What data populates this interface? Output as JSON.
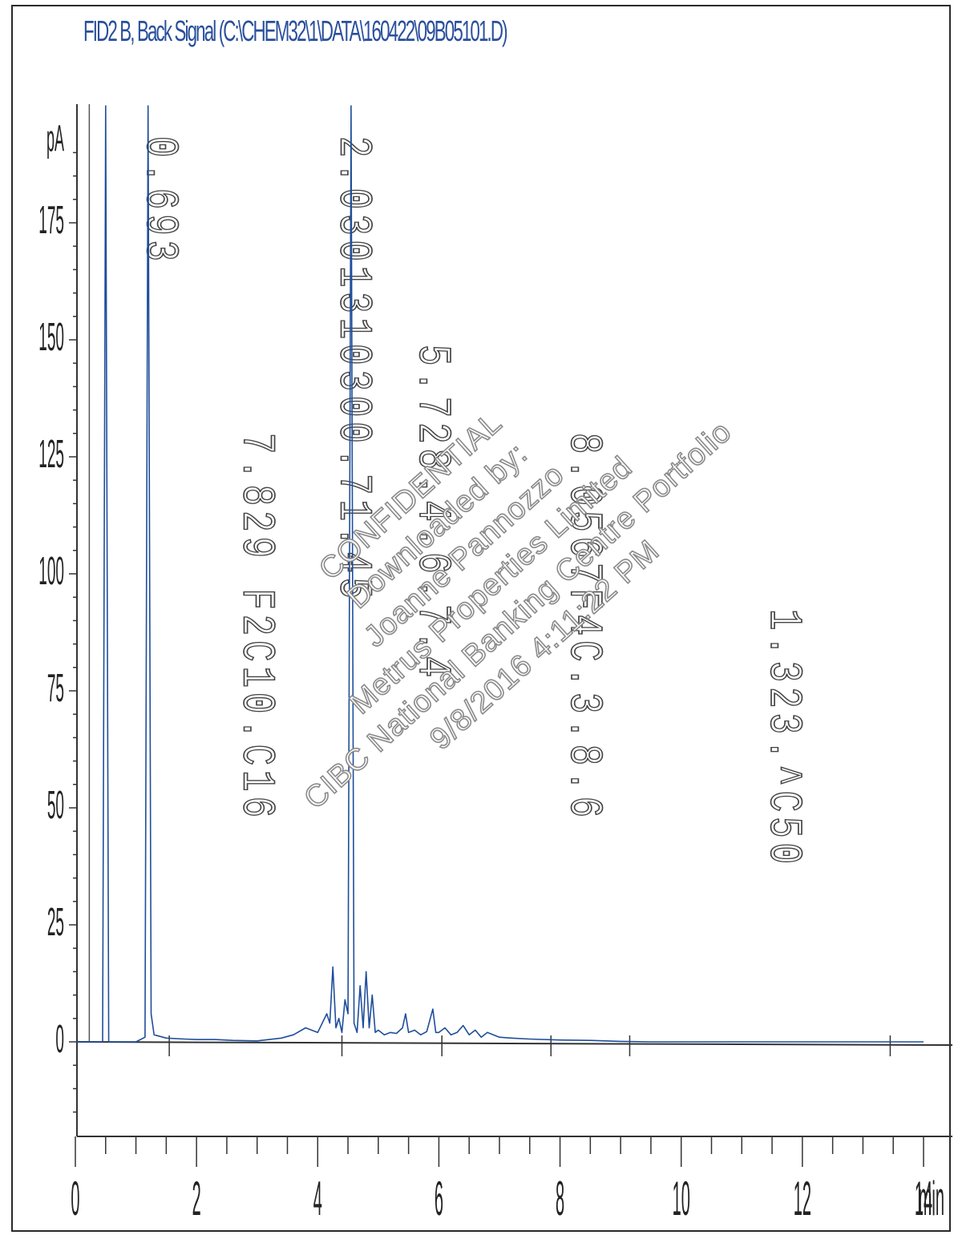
{
  "chart_data": {
    "type": "line",
    "title": "FID2 B, Back Signal (C:\\CHEM32\\1\\DATA\\160422\\09B05101.D)",
    "ylabel": "pA",
    "xlabel": "min",
    "x_ticks": [
      "0",
      "2",
      "4",
      "6",
      "8",
      "10",
      "12",
      "14"
    ],
    "y_ticks": [
      "0",
      "25",
      "50",
      "75",
      "100",
      "125",
      "150",
      "175"
    ],
    "xlim": [
      0,
      14
    ],
    "ylim": [
      -20,
      200
    ],
    "grid": false,
    "legend": "none",
    "series": [
      {
        "color": "#1f4e9a",
        "x": [
          0.0,
          0.35,
          0.45,
          0.5,
          0.55,
          1.0,
          1.15,
          1.2,
          1.25,
          1.3,
          1.5,
          1.8,
          2.0,
          2.3,
          2.6,
          3.0,
          3.4,
          3.6,
          3.8,
          4.0,
          4.15,
          4.2,
          4.25,
          4.3,
          4.35,
          4.4,
          4.45,
          4.5,
          4.55,
          4.6,
          4.65,
          4.7,
          4.75,
          4.8,
          4.85,
          4.9,
          4.95,
          5.0,
          5.1,
          5.2,
          5.3,
          5.4,
          5.45,
          5.5,
          5.6,
          5.7,
          5.8,
          5.9,
          5.95,
          6.0,
          6.1,
          6.2,
          6.3,
          6.4,
          6.5,
          6.6,
          6.7,
          6.8,
          7.0,
          7.2,
          7.5,
          8.0,
          8.5,
          9.0,
          9.5,
          10.0,
          11.0,
          12.0,
          13.0,
          14.0
        ],
        "y": [
          0,
          0,
          0,
          300,
          0,
          0,
          1,
          300,
          6,
          1.5,
          0.8,
          0.6,
          0.5,
          0.5,
          0.3,
          0.2,
          0.8,
          1.5,
          3,
          2,
          6,
          4,
          16,
          3,
          5,
          2,
          9,
          6,
          205,
          4,
          2,
          12,
          3,
          15,
          3,
          10,
          2,
          2.5,
          1.5,
          2,
          1.8,
          3,
          6,
          2,
          2.5,
          1.5,
          2.2,
          7,
          2,
          2,
          3,
          1.5,
          2,
          3.5,
          1.5,
          2.5,
          1,
          2,
          1,
          0.8,
          0.6,
          0.4,
          0.3,
          0.1,
          0,
          0,
          0,
          0,
          0,
          0
        ]
      }
    ],
    "peak_labels": [
      {
        "x": 1.4,
        "label": "0.693"
      },
      {
        "x": 3.0,
        "label": "7.829 F2C10.C16"
      },
      {
        "x": 4.6,
        "label": "2.0301310300.71.45"
      },
      {
        "x": 5.9,
        "label": "5.728.4.6.7.4"
      },
      {
        "x": 8.4,
        "label": "8.0567F4C.3.8.6"
      },
      {
        "x": 11.7,
        "label": "1.323.^C50"
      }
    ]
  },
  "watermark": {
    "lines": [
      "CONFIDENTIAL",
      "Downloaded by:",
      "Joanne Pannozzo",
      "Metrus Properties Limited",
      "CIBC National Banking Centre Portfolio",
      "9/8/2016 4:11:22 PM"
    ]
  }
}
